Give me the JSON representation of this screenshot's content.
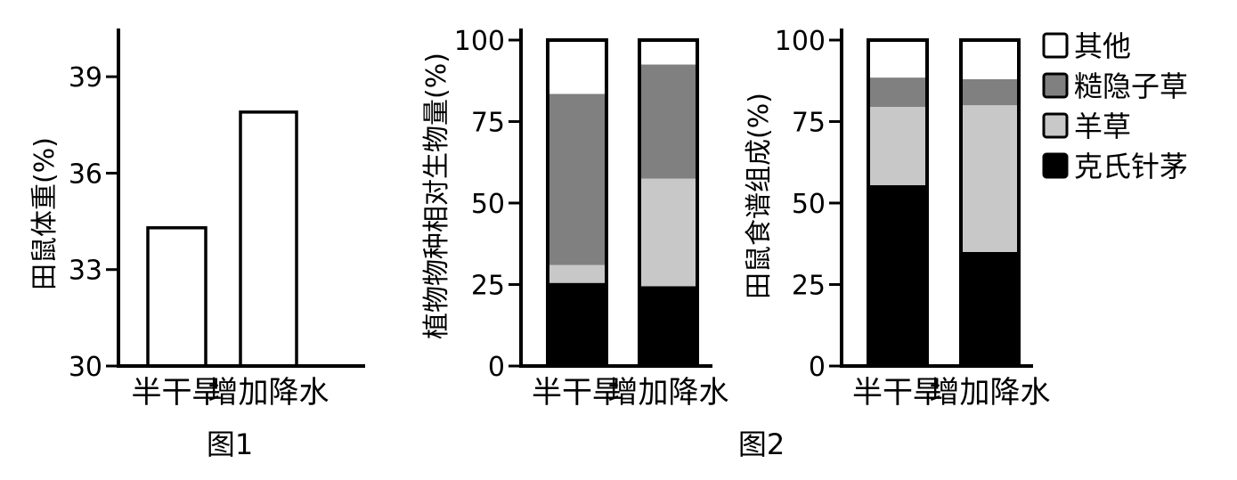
{
  "colors": {
    "其他": "#ffffff",
    "糙隐子草": "#808080",
    "羊草": "#c8c8c8",
    "克氏针茅": "#000000",
    "axis": "#000000"
  },
  "figure_labels": [
    "图1",
    "图2"
  ],
  "chart_data": [
    {
      "type": "bar",
      "categories": [
        "半干旱",
        "增加降水"
      ],
      "values": [
        34.3,
        37.9
      ],
      "title": "",
      "ylabel": "田鼠体重(%)",
      "ylim": [
        30,
        40.5
      ],
      "yticks": [
        "30",
        "33",
        "36",
        "39"
      ],
      "ytick_values": [
        30,
        33,
        36,
        39
      ]
    },
    {
      "type": "bar",
      "stacked": true,
      "categories": [
        "半干旱",
        "增加降水"
      ],
      "series": [
        {
          "name": "克氏针茅",
          "values": [
            25.5,
            24.5
          ]
        },
        {
          "name": "羊草",
          "values": [
            5.5,
            33
          ]
        },
        {
          "name": "糙隐子草",
          "values": [
            52.5,
            35
          ]
        },
        {
          "name": "其他",
          "values": [
            16.5,
            7.5
          ]
        }
      ],
      "ylabel": "植物物种相对生物量(%)",
      "ylim": [
        0,
        100
      ],
      "yticks": [
        "0",
        "25",
        "50",
        "75",
        "100"
      ],
      "ytick_values": [
        0,
        25,
        50,
        75,
        100
      ]
    },
    {
      "type": "bar",
      "stacked": true,
      "categories": [
        "半干旱",
        "增加降水"
      ],
      "series": [
        {
          "name": "克氏针茅",
          "values": [
            55.5,
            35
          ]
        },
        {
          "name": "羊草",
          "values": [
            24,
            45
          ]
        },
        {
          "name": "糙隐子草",
          "values": [
            9,
            8
          ]
        },
        {
          "name": "其他",
          "values": [
            11.5,
            12
          ]
        }
      ],
      "ylabel": "田鼠食谱组成(%)",
      "ylim": [
        0,
        100
      ],
      "yticks": [
        "0",
        "25",
        "50",
        "75",
        "100"
      ],
      "ytick_values": [
        0,
        25,
        50,
        75,
        100
      ]
    }
  ],
  "legend": {
    "placement": "right",
    "items": [
      "其他",
      "糙隐子草",
      "羊草",
      "克氏针茅"
    ]
  }
}
